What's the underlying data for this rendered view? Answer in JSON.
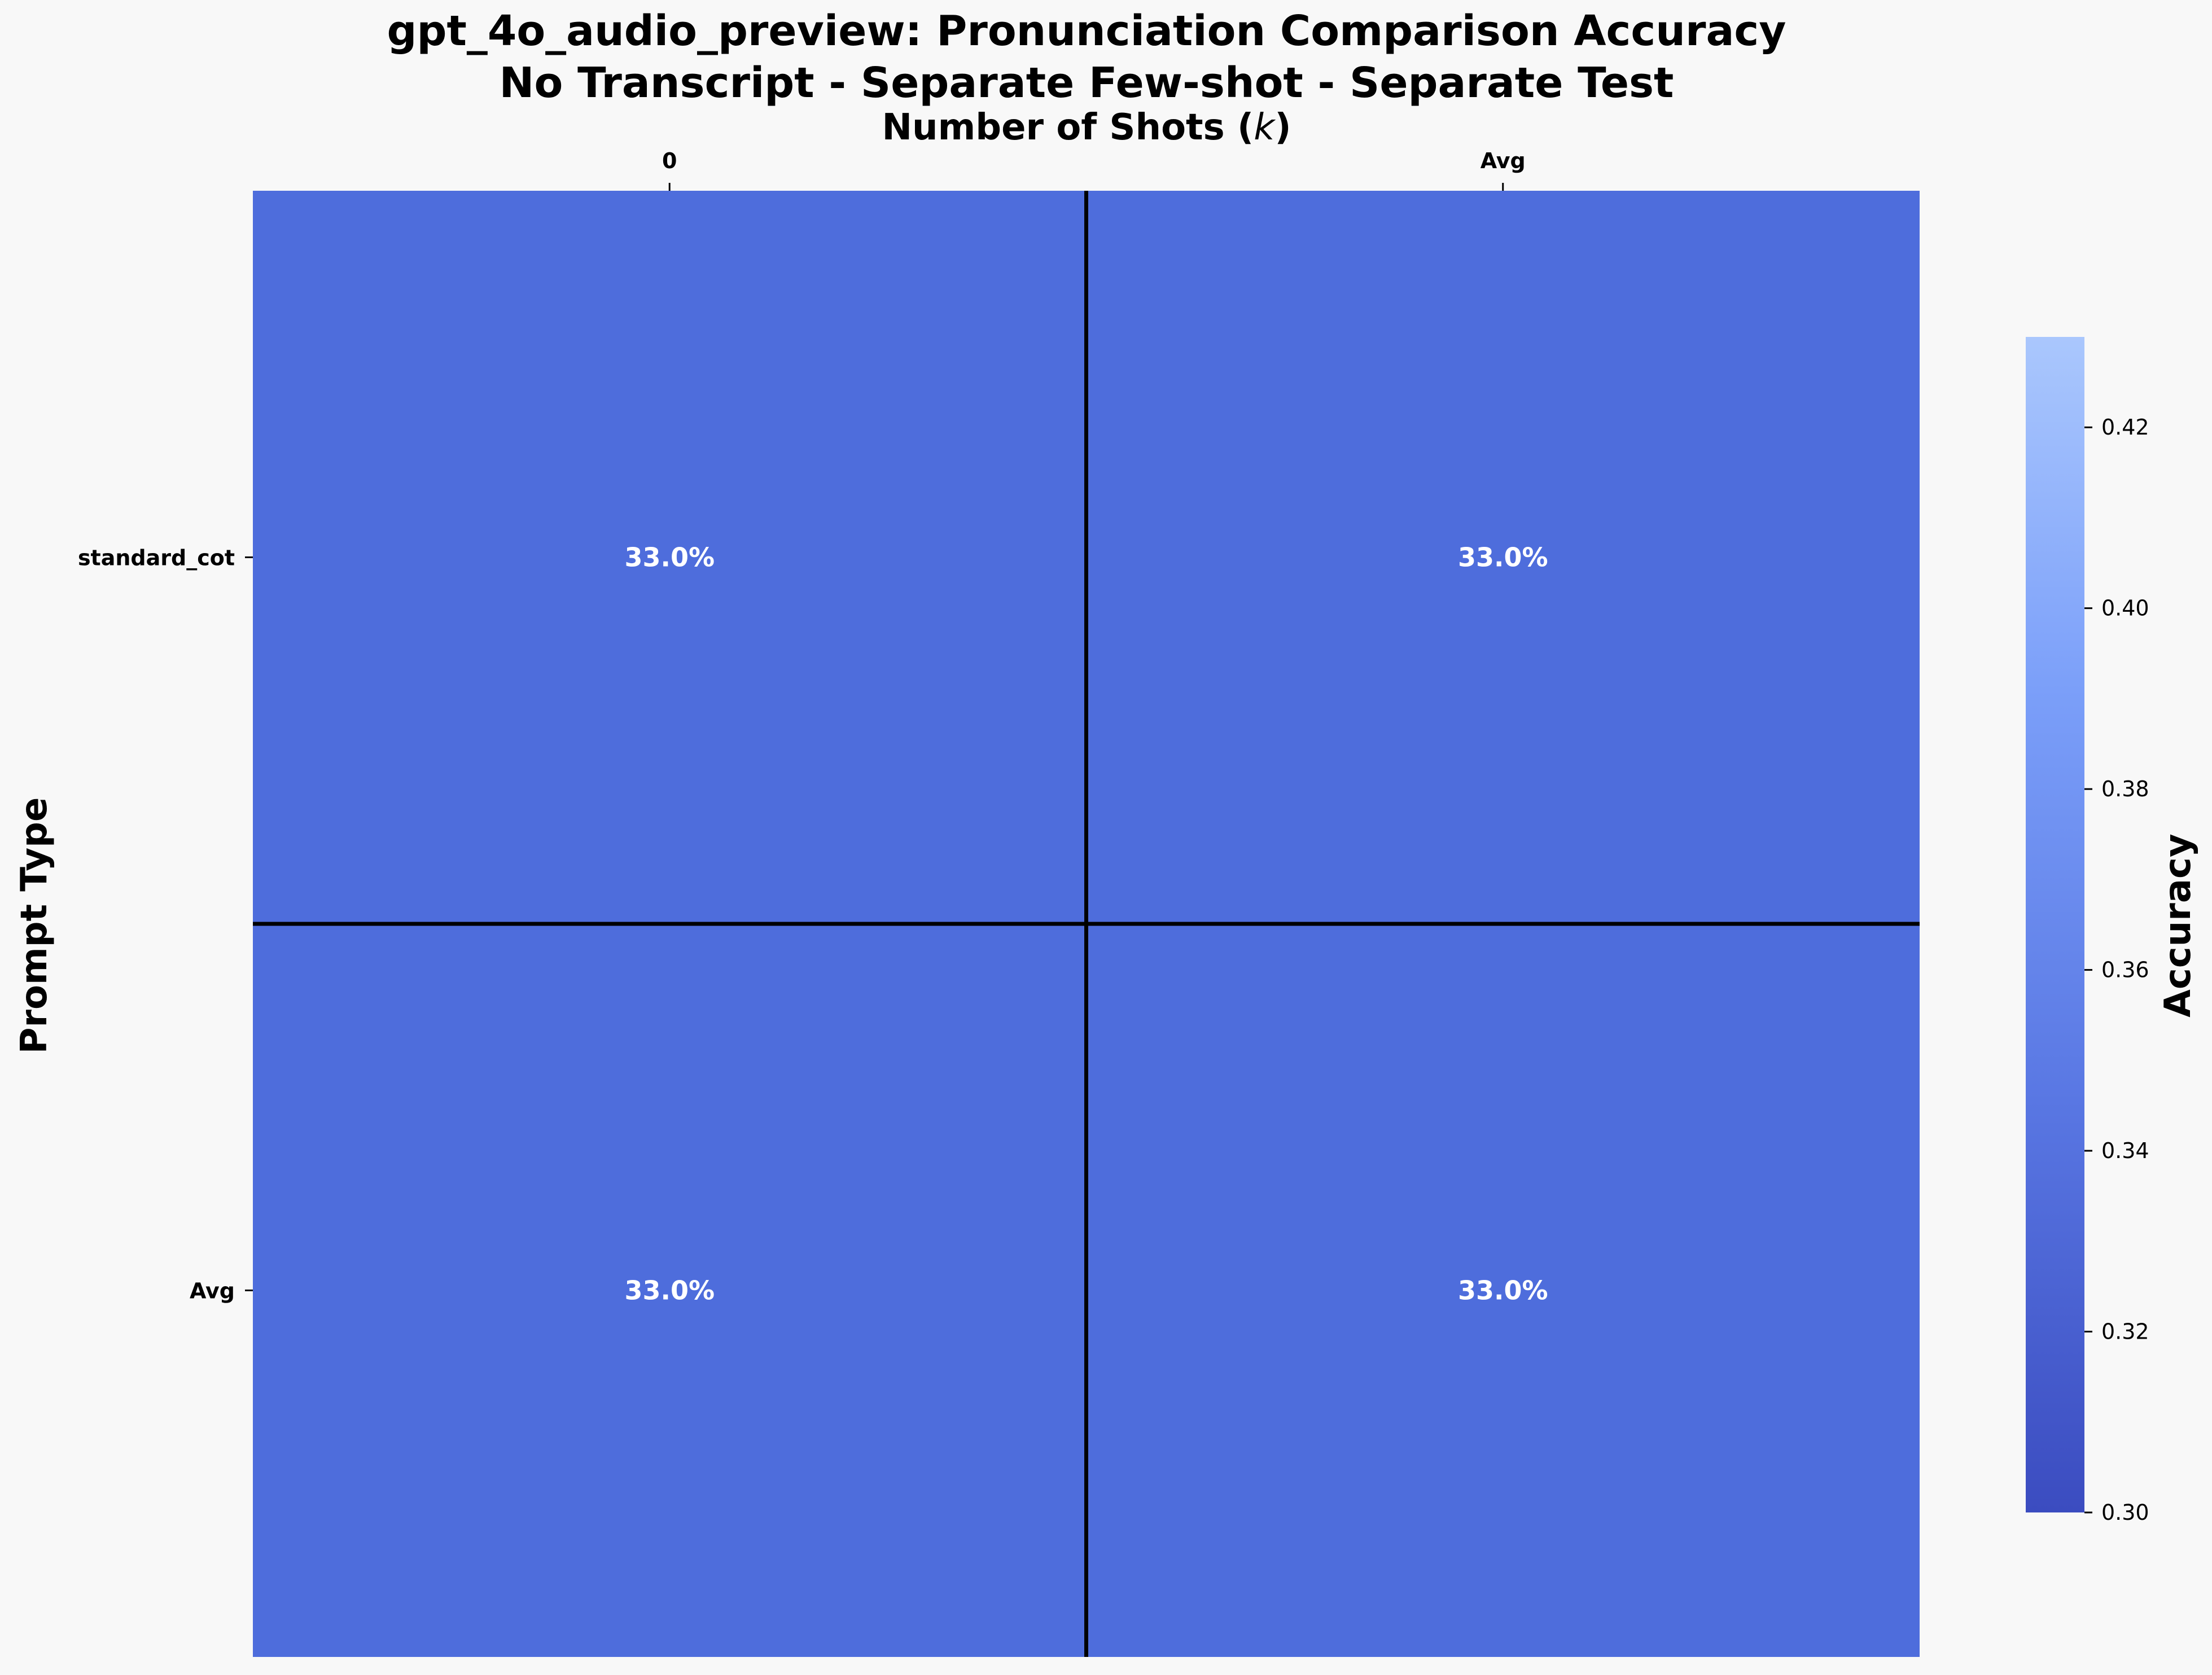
{
  "chart_data": {
    "type": "heatmap",
    "title_lines": [
      "gpt_4o_audio_preview: Pronunciation Comparison Accuracy",
      "No Transcript - Separate Few-shot - Separate Test"
    ],
    "xlabel": "Number of Shots (k)",
    "xlabel_prefix": "Number of Shots (",
    "xlabel_var": "k",
    "xlabel_suffix": ")",
    "ylabel": "Prompt Type",
    "x_categories": [
      "0",
      "Avg"
    ],
    "y_categories": [
      "standard_cot",
      "Avg"
    ],
    "values": [
      [
        0.33,
        0.33
      ],
      [
        0.33,
        0.33
      ]
    ],
    "cell_labels": [
      [
        "33.0%",
        "33.0%"
      ],
      [
        "33.0%",
        "33.0%"
      ]
    ],
    "colormap": "coolwarm",
    "cell_color": "#4e6ddc",
    "x_axis_position": "top",
    "colorbar": {
      "label": "Accuracy",
      "range": [
        0.3,
        0.43
      ],
      "ticks": [
        "0.30",
        "0.32",
        "0.34",
        "0.36",
        "0.38",
        "0.40",
        "0.42"
      ],
      "gradient_stops": [
        "#3b4cc0",
        "#5977e3",
        "#7b9ff9",
        "#aac7fd"
      ]
    },
    "separator_color": "#000000",
    "text_color": "#ffffff"
  }
}
